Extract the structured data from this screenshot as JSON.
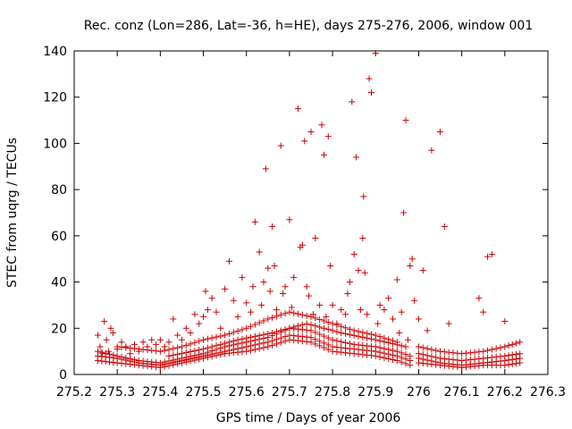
{
  "chart_data": {
    "type": "scatter",
    "title": "Rec. conz (Lon=286, Lat=-36, h=HE), days 275-276, 2006, window 001",
    "xlabel": "GPS time / Days of year 2006",
    "ylabel": "STEC from uqrg / TECUs",
    "xlim": [
      275.2,
      276.3
    ],
    "ylim": [
      0,
      140
    ],
    "xticks": [
      "275.2",
      "275.3",
      "275.4",
      "275.5",
      "275.6",
      "275.7",
      "275.8",
      "275.9",
      "276",
      "276.1",
      "276.2",
      "276.3"
    ],
    "yticks": [
      "0",
      "20",
      "40",
      "60",
      "80",
      "100",
      "120",
      "140"
    ],
    "grid": false,
    "marker": "+",
    "marker_color": "#cc0000",
    "series": [
      {
        "points": [
          [
            275.255,
            17
          ],
          [
            275.26,
            12
          ],
          [
            275.265,
            9
          ],
          [
            275.27,
            23
          ],
          [
            275.275,
            15
          ],
          [
            275.28,
            10
          ],
          [
            275.285,
            20
          ],
          [
            275.29,
            18
          ],
          [
            275.3,
            11
          ],
          [
            275.31,
            14
          ],
          [
            275.32,
            12
          ],
          [
            275.33,
            9
          ],
          [
            275.34,
            13
          ],
          [
            275.35,
            10
          ],
          [
            275.36,
            14
          ],
          [
            275.37,
            12
          ],
          [
            275.38,
            15
          ],
          [
            275.39,
            13
          ],
          [
            275.4,
            15
          ],
          [
            275.41,
            12
          ],
          [
            275.42,
            14
          ],
          [
            275.43,
            24
          ],
          [
            275.44,
            17
          ],
          [
            275.45,
            15
          ],
          [
            275.46,
            20
          ],
          [
            275.47,
            18
          ],
          [
            275.48,
            26
          ],
          [
            275.49,
            22
          ],
          [
            275.5,
            25
          ],
          [
            275.505,
            36
          ],
          [
            275.51,
            28
          ],
          [
            275.52,
            33
          ],
          [
            275.53,
            27
          ],
          [
            275.54,
            20
          ],
          [
            275.55,
            37
          ],
          [
            275.56,
            49
          ],
          [
            275.57,
            32
          ],
          [
            275.58,
            25
          ],
          [
            275.59,
            42
          ],
          [
            275.6,
            31
          ],
          [
            275.61,
            27
          ],
          [
            275.615,
            38
          ],
          [
            275.62,
            66
          ],
          [
            275.63,
            53
          ],
          [
            275.635,
            30
          ],
          [
            275.64,
            40
          ],
          [
            275.645,
            89
          ],
          [
            275.65,
            46
          ],
          [
            275.655,
            36
          ],
          [
            275.66,
            64
          ],
          [
            275.665,
            47
          ],
          [
            275.67,
            28
          ],
          [
            275.68,
            99
          ],
          [
            275.685,
            35
          ],
          [
            275.69,
            38
          ],
          [
            275.7,
            67
          ],
          [
            275.705,
            29
          ],
          [
            275.71,
            42
          ],
          [
            275.72,
            115
          ],
          [
            275.725,
            55
          ],
          [
            275.73,
            56
          ],
          [
            275.735,
            101
          ],
          [
            275.74,
            38
          ],
          [
            275.745,
            34
          ],
          [
            275.75,
            105
          ],
          [
            275.755,
            26
          ],
          [
            275.76,
            59
          ],
          [
            275.77,
            30
          ],
          [
            275.775,
            108
          ],
          [
            275.78,
            95
          ],
          [
            275.785,
            25
          ],
          [
            275.79,
            103
          ],
          [
            275.795,
            47
          ],
          [
            275.8,
            30
          ],
          [
            275.81,
            22
          ],
          [
            275.82,
            28
          ],
          [
            275.83,
            26
          ],
          [
            275.835,
            35
          ],
          [
            275.84,
            40
          ],
          [
            275.845,
            118
          ],
          [
            275.85,
            52
          ],
          [
            275.855,
            94
          ],
          [
            275.86,
            45
          ],
          [
            275.865,
            28
          ],
          [
            275.87,
            59
          ],
          [
            275.872,
            77
          ],
          [
            275.875,
            44
          ],
          [
            275.88,
            26
          ],
          [
            275.885,
            128
          ],
          [
            275.89,
            122
          ],
          [
            275.9,
            139
          ],
          [
            275.905,
            22
          ],
          [
            275.91,
            30
          ],
          [
            275.92,
            28
          ],
          [
            275.93,
            33
          ],
          [
            275.94,
            24
          ],
          [
            275.95,
            41
          ],
          [
            275.955,
            18
          ],
          [
            275.96,
            27
          ],
          [
            275.965,
            70
          ],
          [
            275.97,
            110
          ],
          [
            275.975,
            15
          ],
          [
            275.98,
            47
          ],
          [
            275.985,
            50
          ],
          [
            275.99,
            32
          ],
          [
            276,
            24
          ],
          [
            276.01,
            45
          ],
          [
            276.02,
            19
          ],
          [
            276.03,
            97
          ],
          [
            276.05,
            105
          ],
          [
            276.06,
            64
          ],
          [
            276.07,
            22
          ],
          [
            276.14,
            33
          ],
          [
            276.15,
            27
          ],
          [
            276.16,
            51
          ],
          [
            276.17,
            52
          ],
          [
            276.2,
            23
          ]
        ],
        "tracks": [
          [
            [
              275.255,
              10
            ],
            [
              275.3,
              8
            ],
            [
              275.35,
              6
            ],
            [
              275.4,
              5
            ],
            [
              275.45,
              7
            ],
            [
              275.5,
              9
            ],
            [
              275.55,
              12
            ],
            [
              275.6,
              14
            ],
            [
              275.65,
              16
            ],
            [
              275.7,
              20
            ],
            [
              275.75,
              19
            ],
            [
              275.8,
              15
            ],
            [
              275.85,
              13
            ],
            [
              275.9,
              12
            ],
            [
              275.95,
              10
            ],
            [
              275.98,
              8
            ]
          ],
          [
            [
              275.255,
              8
            ],
            [
              275.3,
              7
            ],
            [
              275.35,
              5
            ],
            [
              275.4,
              4
            ],
            [
              275.45,
              6
            ],
            [
              275.5,
              8
            ],
            [
              275.55,
              10
            ],
            [
              275.6,
              12
            ],
            [
              275.65,
              14
            ],
            [
              275.7,
              17
            ],
            [
              275.75,
              16
            ],
            [
              275.8,
              12
            ],
            [
              275.85,
              11
            ],
            [
              275.9,
              10
            ],
            [
              275.95,
              8
            ],
            [
              275.98,
              6
            ]
          ],
          [
            [
              275.255,
              6
            ],
            [
              275.3,
              5
            ],
            [
              275.35,
              4
            ],
            [
              275.4,
              3
            ],
            [
              275.45,
              5
            ],
            [
              275.5,
              7
            ],
            [
              275.55,
              9
            ],
            [
              275.6,
              10
            ],
            [
              275.65,
              12
            ],
            [
              275.7,
              15
            ],
            [
              275.75,
              14
            ],
            [
              275.8,
              10
            ],
            [
              275.85,
              9
            ],
            [
              275.9,
              8
            ],
            [
              275.95,
              6
            ],
            [
              275.98,
              4
            ]
          ],
          [
            [
              275.3,
              12
            ],
            [
              275.35,
              11
            ],
            [
              275.4,
              10
            ],
            [
              275.45,
              12
            ],
            [
              275.5,
              15
            ],
            [
              275.55,
              17
            ],
            [
              275.6,
              20
            ],
            [
              275.65,
              24
            ],
            [
              275.7,
              27
            ],
            [
              275.75,
              25
            ],
            [
              275.8,
              22
            ],
            [
              275.85,
              19
            ],
            [
              275.9,
              17
            ],
            [
              275.95,
              14
            ]
          ],
          [
            [
              275.42,
              8
            ],
            [
              275.5,
              11
            ],
            [
              275.58,
              15
            ],
            [
              275.66,
              18
            ],
            [
              275.74,
              22
            ],
            [
              275.82,
              18
            ],
            [
              275.9,
              15
            ],
            [
              275.97,
              12
            ]
          ],
          [
            [
              276,
              9
            ],
            [
              276.05,
              7
            ],
            [
              276.1,
              6
            ],
            [
              276.15,
              7
            ],
            [
              276.2,
              8
            ],
            [
              276.235,
              9
            ]
          ],
          [
            [
              276,
              7
            ],
            [
              276.05,
              5
            ],
            [
              276.1,
              4
            ],
            [
              276.15,
              5
            ],
            [
              276.2,
              6
            ],
            [
              276.235,
              7
            ]
          ],
          [
            [
              276,
              5
            ],
            [
              276.05,
              4
            ],
            [
              276.1,
              3
            ],
            [
              276.15,
              4
            ],
            [
              276.2,
              4
            ],
            [
              276.235,
              5
            ]
          ],
          [
            [
              276,
              12
            ],
            [
              276.05,
              10
            ],
            [
              276.1,
              9
            ],
            [
              276.15,
              10
            ],
            [
              276.2,
              12
            ],
            [
              276.235,
              14
            ]
          ]
        ]
      }
    ]
  }
}
